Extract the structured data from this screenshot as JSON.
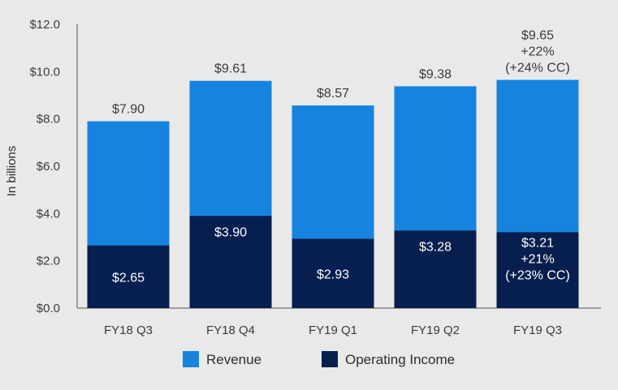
{
  "chart_data": {
    "type": "bar",
    "stacked": false,
    "overlaid": true,
    "categories": [
      "FY18 Q3",
      "FY18 Q4",
      "FY19 Q1",
      "FY19 Q2",
      "FY19 Q3"
    ],
    "series": [
      {
        "name": "Revenue",
        "color": "#1683df",
        "values": [
          7.9,
          9.61,
          8.57,
          9.38,
          9.65
        ],
        "labels": [
          [
            "$7.90"
          ],
          [
            "$9.61"
          ],
          [
            "$8.57"
          ],
          [
            "$9.38"
          ],
          [
            "$9.65",
            "+22%",
            "(+24% CC)"
          ]
        ]
      },
      {
        "name": "Operating Income",
        "color": "#071f4e",
        "values": [
          2.65,
          3.9,
          2.93,
          3.28,
          3.21
        ],
        "labels": [
          [
            "$2.65"
          ],
          [
            "$3.90"
          ],
          [
            "$2.93"
          ],
          [
            "$3.28"
          ],
          [
            "$3.21",
            "+21%",
            "(+23% CC)"
          ]
        ]
      }
    ],
    "ylabel": "In billions",
    "xlabel": "",
    "ylim": [
      0,
      12
    ],
    "yticks": [
      0,
      2,
      4,
      6,
      8,
      10,
      12
    ],
    "ytick_labels": [
      "$0.0",
      "$2.0",
      "$4.0",
      "$6.0",
      "$8.0",
      "$10.0",
      "$12.0"
    ],
    "grid": false,
    "legend_position": "bottom-center"
  }
}
